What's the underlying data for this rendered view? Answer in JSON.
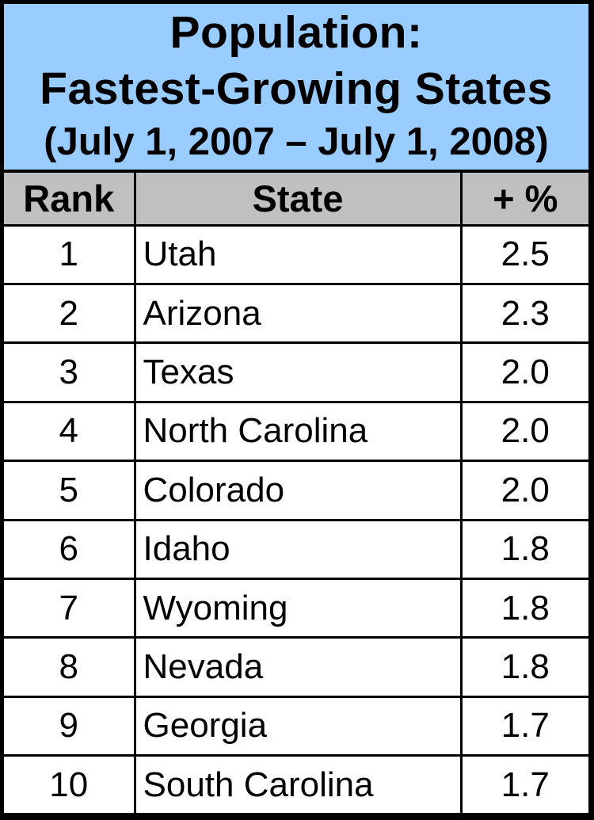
{
  "title": {
    "line1": "Population:",
    "line2": "Fastest-Growing States",
    "line3": "(July 1, 2007 – July 1, 2008)"
  },
  "table": {
    "columns": [
      "Rank",
      "State",
      "+ %"
    ],
    "rows": [
      {
        "rank": "1",
        "state": "Utah",
        "pct": "2.5"
      },
      {
        "rank": "2",
        "state": "Arizona",
        "pct": "2.3"
      },
      {
        "rank": "3",
        "state": "Texas",
        "pct": "2.0"
      },
      {
        "rank": "4",
        "state": "North Carolina",
        "pct": "2.0"
      },
      {
        "rank": "5",
        "state": "Colorado",
        "pct": "2.0"
      },
      {
        "rank": "6",
        "state": "Idaho",
        "pct": "1.8"
      },
      {
        "rank": "7",
        "state": "Wyoming",
        "pct": "1.8"
      },
      {
        "rank": "8",
        "state": "Nevada",
        "pct": "1.8"
      },
      {
        "rank": "9",
        "state": "Georgia",
        "pct": "1.7"
      },
      {
        "rank": "10",
        "state": "South Carolina",
        "pct": "1.7"
      }
    ]
  },
  "colors": {
    "title_background": "#99CCFF",
    "header_background": "#C0C0C0",
    "row_background": "#FFFFFF",
    "border": "#000000",
    "text": "#000000"
  },
  "chart_data": {
    "type": "table",
    "title": "Population: Fastest-Growing States (July 1, 2007 – July 1, 2008)",
    "columns": [
      "Rank",
      "State",
      "+ %"
    ],
    "rows": [
      [
        1,
        "Utah",
        2.5
      ],
      [
        2,
        "Arizona",
        2.3
      ],
      [
        3,
        "Texas",
        2.0
      ],
      [
        4,
        "North Carolina",
        2.0
      ],
      [
        5,
        "Colorado",
        2.0
      ],
      [
        6,
        "Idaho",
        1.8
      ],
      [
        7,
        "Wyoming",
        1.8
      ],
      [
        8,
        "Nevada",
        1.8
      ],
      [
        9,
        "Georgia",
        1.7
      ],
      [
        10,
        "South Carolina",
        1.7
      ]
    ],
    "value_unit": "percent growth",
    "ylim": null,
    "legend": null
  }
}
